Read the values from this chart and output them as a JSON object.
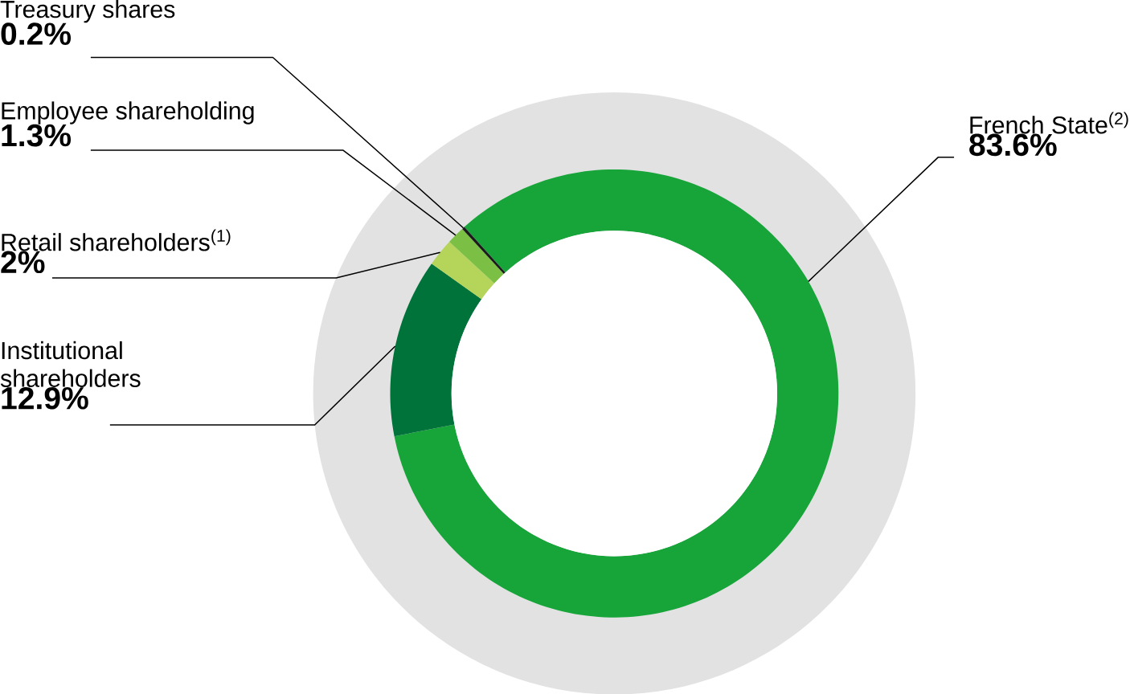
{
  "chart_data": {
    "type": "donut",
    "categories": [
      "French State$^{(2)}$",
      "Institutional shareholders",
      "Retail shareholders$^{(1)}$",
      "Employee shareholding",
      "Treasury shares"
    ],
    "values": [
      83.6,
      12.9,
      2,
      1.3,
      0.2
    ],
    "colors": [
      "#17a53a",
      "#00733a",
      "#b5d55a",
      "#7bbf44",
      "#1a1a1a"
    ],
    "value_labels": [
      "83.6%",
      "12.9%",
      "2%",
      "1.3%",
      "0.2%"
    ]
  }
}
